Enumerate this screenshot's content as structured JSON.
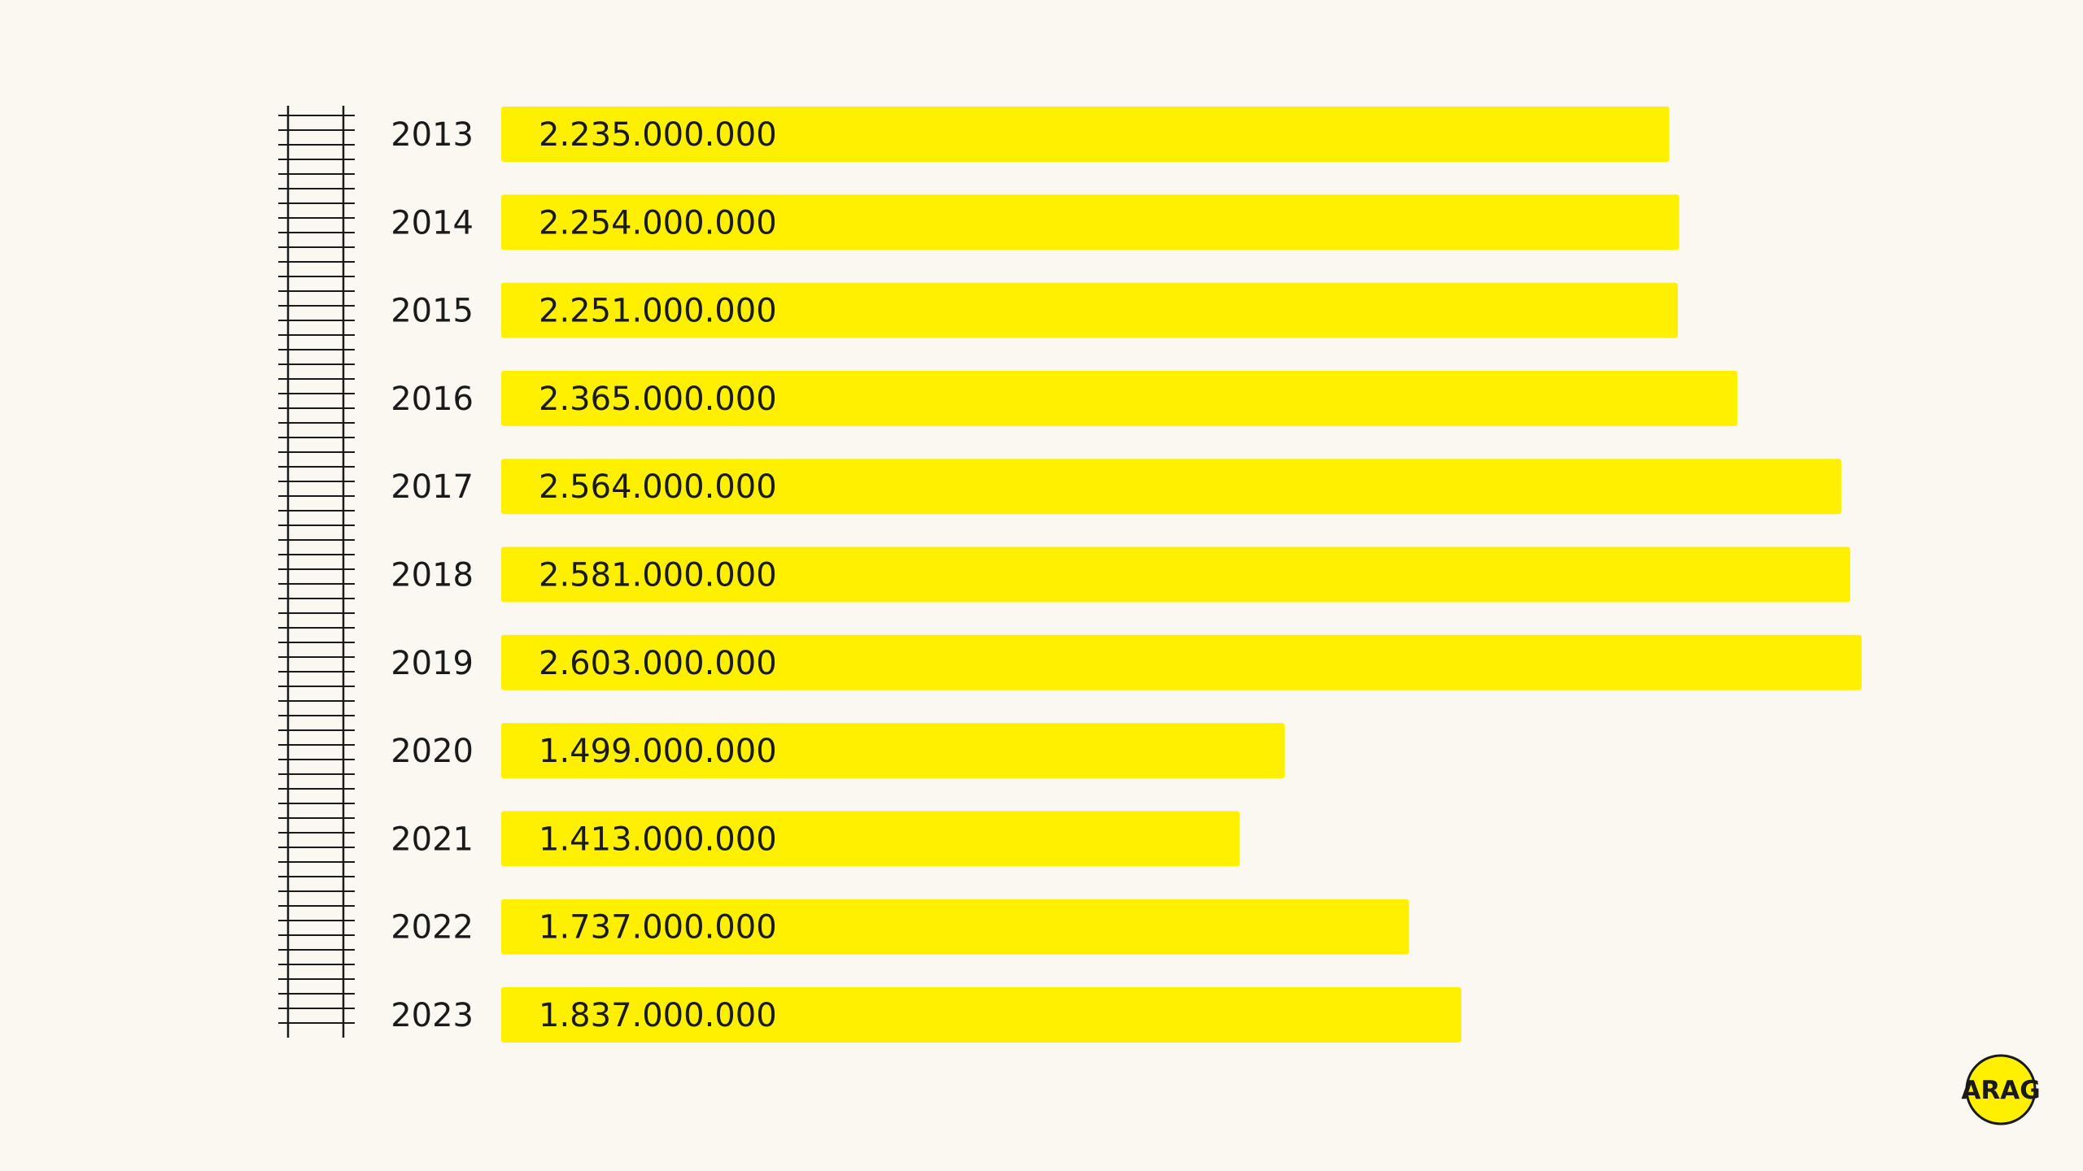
{
  "chart_data": {
    "type": "bar",
    "orientation": "horizontal",
    "categories": [
      "2013",
      "2014",
      "2015",
      "2016",
      "2017",
      "2018",
      "2019",
      "2020",
      "2021",
      "2022",
      "2023"
    ],
    "values": [
      2235000000,
      2254000000,
      2251000000,
      2365000000,
      2564000000,
      2581000000,
      2603000000,
      1499000000,
      1413000000,
      1737000000,
      1837000000
    ],
    "value_labels": [
      "2.235.000.000",
      "2.254.000.000",
      "2.251.000.000",
      "2.365.000.000",
      "2.564.000.000",
      "2.581.000.000",
      "2.603.000.000",
      "1.499.000.000",
      "1.413.000.000",
      "1.737.000.000",
      "1.837.000.000"
    ],
    "xlim": [
      0,
      2603000000
    ],
    "bar_color": "#fff000",
    "title": "",
    "xlabel": "",
    "ylabel": "",
    "grid": false,
    "legend": "none"
  },
  "logo": {
    "text": "ARAG",
    "color": "#fff000"
  }
}
